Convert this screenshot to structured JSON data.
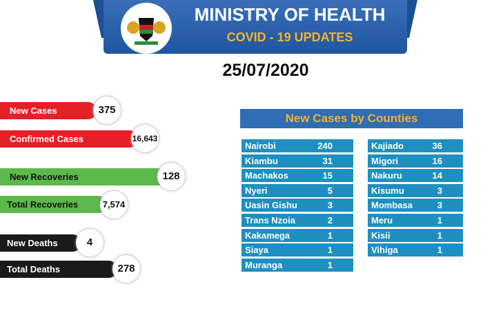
{
  "header": {
    "title": "MINISTRY OF HEALTH",
    "subtitle": "COVID - 19 UPDATES",
    "date": "25/07/2020"
  },
  "stats": [
    {
      "label": "New Cases",
      "value": "375",
      "color": "#e52027"
    },
    {
      "label": "Confirmed Cases",
      "value": "16,643",
      "color": "#e52027"
    },
    {
      "label": "New Recoveries",
      "value": "128",
      "color": "#5cb84a"
    },
    {
      "label": "Total Recoveries",
      "value": "7,574",
      "color": "#5cb84a"
    },
    {
      "label": "New Deaths",
      "value": "4",
      "color": "#1a1a1a"
    },
    {
      "label": "Total Deaths",
      "value": "278",
      "color": "#1a1a1a"
    }
  ],
  "counties": {
    "title": "New Cases by Counties",
    "left": [
      [
        "Nairobi",
        "240"
      ],
      [
        "Kiambu",
        "31"
      ],
      [
        "Machakos",
        "15"
      ],
      [
        "Nyeri",
        "5"
      ],
      [
        "Uasin Gishu",
        "3"
      ],
      [
        "Trans Nzoia",
        "2"
      ],
      [
        "Kakamega",
        "1"
      ],
      [
        "Siaya",
        "1"
      ],
      [
        "Muranga",
        "1"
      ]
    ],
    "right": [
      [
        "Kajiado",
        "36"
      ],
      [
        "Migori",
        "16"
      ],
      [
        "Nakuru",
        "14"
      ],
      [
        "Kisumu",
        "3"
      ],
      [
        "Mombasa",
        "3"
      ],
      [
        "Meru",
        "1"
      ],
      [
        "Kisii",
        "1"
      ],
      [
        "Vihiga",
        "1"
      ]
    ]
  }
}
